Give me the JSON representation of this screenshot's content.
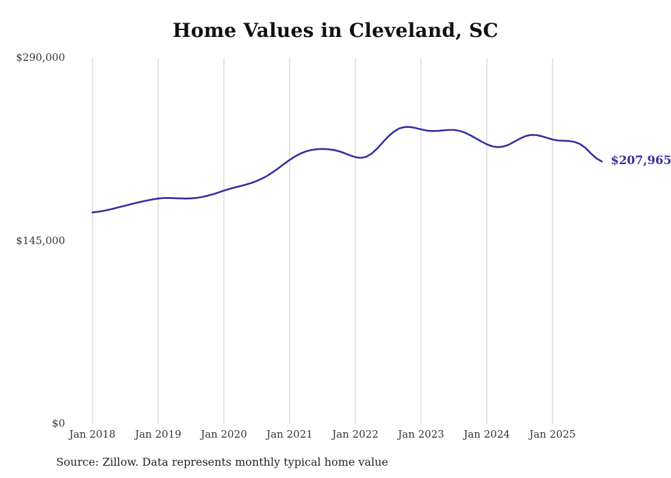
{
  "title": "Home Values in Cleveland, SC",
  "source_note": "Source: Zillow. Data represents monthly typical home value",
  "chart_data": {
    "type": "line",
    "title": "Home Values in Cleveland, SC",
    "x_start": "Jan 2018",
    "x_end": "Oct 2025",
    "x_frequency": "monthly",
    "ylim": [
      0,
      290000
    ],
    "ytick_labels": [
      "$290,000",
      "$145,000",
      "$0"
    ],
    "ytick_values": [
      290000,
      145000,
      0
    ],
    "x_tick_labels": [
      "Jan 2018",
      "Jan 2019",
      "Jan 2020",
      "Jan 2021",
      "Jan 2022",
      "Jan 2023",
      "Jan 2024",
      "Jan 2025"
    ],
    "end_label": "$207,965",
    "last_value": 207965,
    "line_color": "#332fa0",
    "grid": "vertical-only",
    "grid_color": "#c9c9c9",
    "legend": "none",
    "values": [
      167700,
      168200,
      168900,
      169800,
      170900,
      172000,
      173100,
      174200,
      175300,
      176300,
      177200,
      178000,
      178700,
      179100,
      179200,
      179000,
      178800,
      178700,
      178800,
      179200,
      179900,
      180900,
      182100,
      183500,
      185000,
      186300,
      187500,
      188600,
      189700,
      191000,
      192600,
      194600,
      197000,
      199800,
      202900,
      206200,
      209300,
      212100,
      214400,
      216100,
      217200,
      217800,
      218000,
      217800,
      217200,
      216200,
      214700,
      213000,
      211500,
      210900,
      211800,
      214400,
      218400,
      223200,
      227900,
      231700,
      234200,
      235400,
      235400,
      234600,
      233500,
      232600,
      232200,
      232300,
      232700,
      233100,
      233100,
      232400,
      230900,
      228800,
      226400,
      223900,
      221700,
      220100,
      219400,
      219900,
      221400,
      223700,
      226100,
      228100,
      229100,
      229000,
      228100,
      226800,
      225500,
      224700,
      224500,
      224300,
      223600,
      221900,
      218900,
      214500,
      210600,
      207965
    ]
  }
}
